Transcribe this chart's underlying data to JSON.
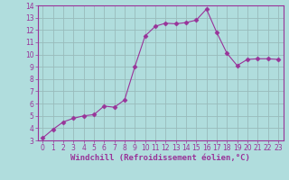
{
  "x": [
    0,
    1,
    2,
    3,
    4,
    5,
    6,
    7,
    8,
    9,
    10,
    11,
    12,
    13,
    14,
    15,
    16,
    17,
    18,
    19,
    20,
    21,
    22,
    23
  ],
  "y": [
    3.2,
    3.9,
    4.5,
    4.8,
    5.0,
    5.1,
    5.8,
    5.7,
    6.3,
    9.0,
    11.5,
    12.3,
    12.55,
    12.5,
    12.6,
    12.8,
    13.7,
    11.8,
    10.1,
    9.1,
    9.6,
    9.65,
    9.65,
    9.6
  ],
  "line_color": "#993399",
  "marker": "D",
  "marker_size": 2.5,
  "bg_color": "#b0dddd",
  "grid_color": "#99bbbb",
  "xlabel": "Windchill (Refroidissement éolien,°C)",
  "xlim": [
    -0.5,
    23.5
  ],
  "ylim": [
    3,
    14
  ],
  "yticks": [
    3,
    4,
    5,
    6,
    7,
    8,
    9,
    10,
    11,
    12,
    13,
    14
  ],
  "xticks": [
    0,
    1,
    2,
    3,
    4,
    5,
    6,
    7,
    8,
    9,
    10,
    11,
    12,
    13,
    14,
    15,
    16,
    17,
    18,
    19,
    20,
    21,
    22,
    23
  ],
  "tick_label_fontsize": 5.5,
  "xlabel_fontsize": 6.5,
  "label_color": "#993399",
  "spine_color": "#993399"
}
